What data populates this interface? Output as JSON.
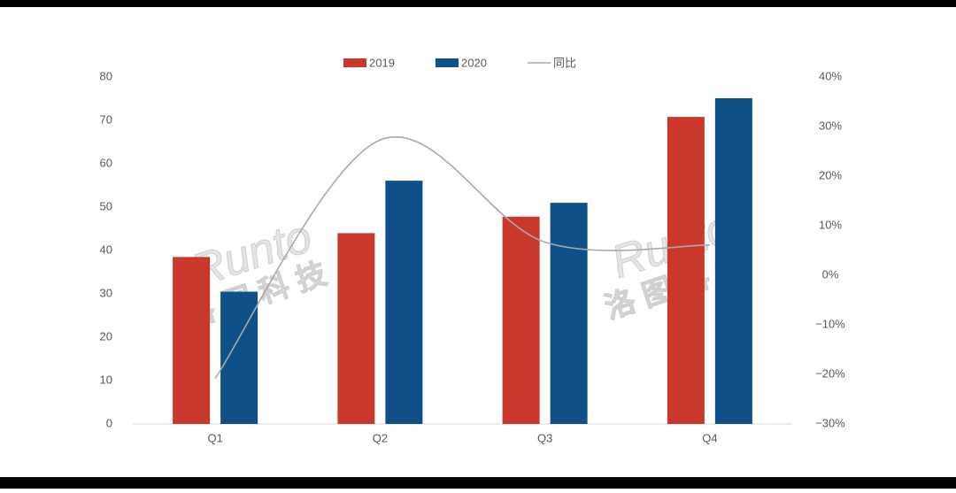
{
  "chart_data": {
    "type": "bar-line",
    "categories": [
      "Q1",
      "Q2",
      "Q3",
      "Q4"
    ],
    "series": [
      {
        "name": "2019",
        "type": "bar",
        "color": "#c9382b",
        "values": [
          38.5,
          44,
          47.8,
          70.8
        ]
      },
      {
        "name": "2020",
        "type": "bar",
        "color": "#0f5088",
        "values": [
          30.5,
          56.1,
          51,
          75.1
        ]
      },
      {
        "name": "同比",
        "type": "line",
        "axis": "y2",
        "color": "#a9a9a9",
        "values": [
          -20.8,
          27.3,
          6.7,
          6.1
        ]
      }
    ],
    "ylim": [
      0,
      80
    ],
    "yticks": [
      0,
      10,
      20,
      30,
      40,
      50,
      60,
      70,
      80
    ],
    "y2lim": [
      -30,
      40
    ],
    "y2ticks": [
      {
        "value": -30,
        "label": "−30%"
      },
      {
        "value": -20,
        "label": "−20%"
      },
      {
        "value": -10,
        "label": "−10%"
      },
      {
        "value": 0,
        "label": "0%"
      },
      {
        "value": 10,
        "label": "10%"
      },
      {
        "value": 20,
        "label": "20%"
      },
      {
        "value": 30,
        "label": "30%"
      },
      {
        "value": 40,
        "label": "40%"
      }
    ],
    "grid": false,
    "legend": "top",
    "watermark": [
      "Runto",
      "洛图科技"
    ]
  }
}
